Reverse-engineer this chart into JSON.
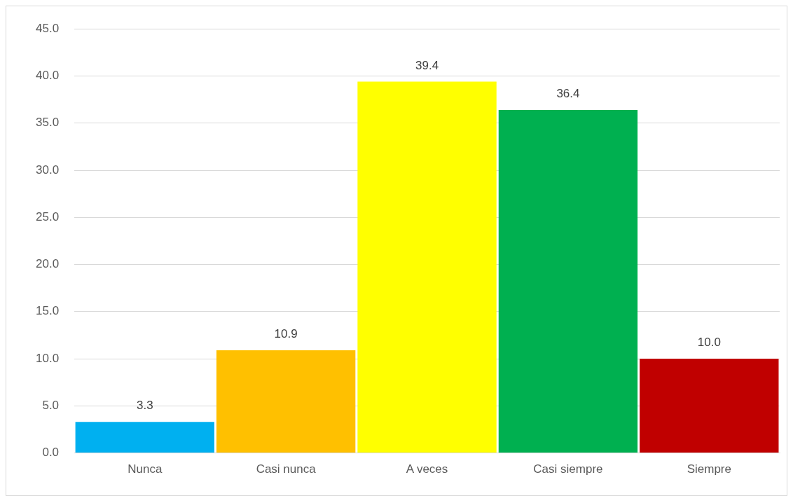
{
  "chart_data": {
    "type": "bar",
    "categories": [
      "Nunca",
      "Casi nunca",
      "A veces",
      "Casi siempre",
      "Siempre"
    ],
    "values": [
      3.3,
      10.9,
      39.4,
      36.4,
      10.0
    ],
    "colors": [
      "#00b0f0",
      "#ffc000",
      "#ffff00",
      "#00b050",
      "#c00000"
    ],
    "value_labels": [
      "3.3",
      "10.9",
      "39.4",
      "36.4",
      "10.0"
    ],
    "ylim": [
      0,
      45
    ],
    "yticks": [
      {
        "value": 0,
        "label": "0.0"
      },
      {
        "value": 5,
        "label": "5.0"
      },
      {
        "value": 10,
        "label": "10.0"
      },
      {
        "value": 15,
        "label": "15.0"
      },
      {
        "value": 20,
        "label": "20.0"
      },
      {
        "value": 25,
        "label": "25.0"
      },
      {
        "value": 30,
        "label": "30.0"
      },
      {
        "value": 35,
        "label": "35.0"
      },
      {
        "value": 40,
        "label": "40.0"
      },
      {
        "value": 45,
        "label": "45.0"
      }
    ],
    "grid": "y",
    "legend": false
  }
}
